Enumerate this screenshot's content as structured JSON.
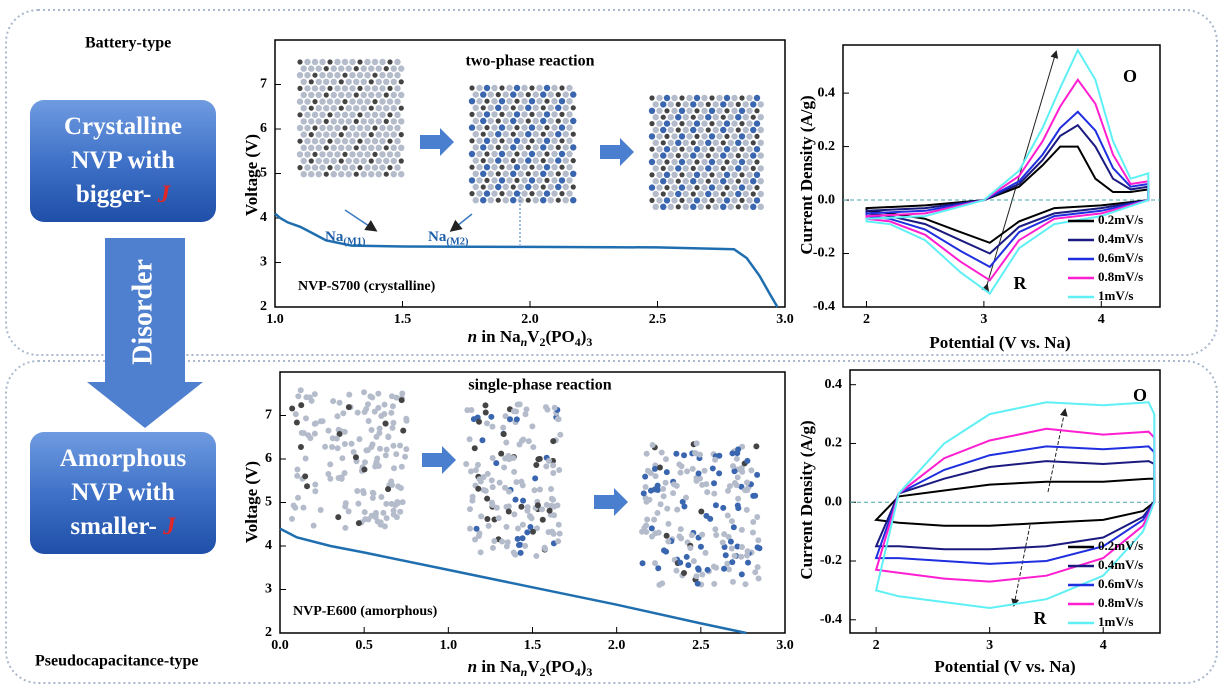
{
  "battery_label": "Battery-type",
  "pseudo_label": "Pseudocapacitance-type",
  "arrow_label": "Disorder",
  "boxes": [
    [
      [
        {
          "text": "Crystalline"
        }
      ],
      [
        {
          "text": "NVP with"
        }
      ],
      [
        {
          "text": "bigger- "
        },
        {
          "text": "J",
          "italic": true,
          "color": "#e02828"
        }
      ]
    ],
    [
      [
        {
          "text": "Amorphous"
        }
      ],
      [
        {
          "text": "NVP with"
        }
      ],
      [
        {
          "text": "smaller- "
        },
        {
          "text": "J",
          "italic": true,
          "color": "#e02828"
        }
      ]
    ]
  ],
  "chart_data": [
    {
      "type": "line",
      "annotations": [
        "two-phase reaction",
        "NVP-S700 (crystalline)"
      ],
      "site_labels": [
        [
          {
            "text": "Na"
          },
          {
            "text": "(M1)",
            "sub": true
          }
        ],
        [
          {
            "text": "Na"
          },
          {
            "text": "(M2)",
            "sub": true
          }
        ]
      ],
      "ylabel": "Voltage (V)",
      "xlabel": [
        {
          "text": "n",
          "italic": true
        },
        {
          "text": " in Na"
        },
        {
          "text": "n",
          "italic": true,
          "sub": true
        },
        {
          "text": "V"
        },
        {
          "text": "2",
          "sub": true
        },
        {
          "text": "(PO"
        },
        {
          "text": "4",
          "sub": true
        },
        {
          "text": ")"
        },
        {
          "text": "3",
          "sub": true
        }
      ],
      "x": [
        1.0,
        1.02,
        1.05,
        1.1,
        1.15,
        1.2,
        1.3,
        1.5,
        2.0,
        2.5,
        2.8,
        2.85,
        2.9,
        2.94,
        2.97
      ],
      "values": [
        4.1,
        4.0,
        3.9,
        3.8,
        3.65,
        3.5,
        3.38,
        3.36,
        3.35,
        3.34,
        3.3,
        3.1,
        2.7,
        2.3,
        2.0
      ],
      "color": "#1f6fb0",
      "xlim": [
        1.0,
        3.0
      ],
      "ylim": [
        2,
        8
      ],
      "xticks": [
        {
          "value": 1,
          "label": "1.0"
        },
        1.5,
        {
          "value": 2,
          "label": "2.0"
        },
        2.5,
        {
          "value": 3,
          "label": "3.0"
        }
      ],
      "yticks": [
        2,
        3,
        4,
        5,
        6,
        7
      ]
    },
    {
      "type": "line",
      "annotations": [
        "O",
        "R"
      ],
      "ylabel": "Current Density (A/g)",
      "xlabel": "Potential (V vs. Na)",
      "legend": "lower right",
      "x": [
        2.0,
        2.5,
        3.0,
        3.3,
        3.5,
        3.65,
        3.8,
        3.95,
        4.1,
        4.25,
        4.4,
        4.4,
        4.0,
        3.6,
        3.3,
        3.05,
        2.8,
        2.5,
        2.2,
        2.0
      ],
      "series": [
        {
          "name": "0.2mV/s",
          "color": "#000000",
          "values": [
            -0.03,
            -0.02,
            0.0,
            0.05,
            0.13,
            0.2,
            0.2,
            0.08,
            0.03,
            0.03,
            0.04,
            0.0,
            -0.02,
            -0.03,
            -0.08,
            -0.16,
            -0.12,
            -0.07,
            -0.05,
            -0.04
          ]
        },
        {
          "name": "0.4mV/s",
          "color": "#1a1a80",
          "values": [
            -0.04,
            -0.03,
            0.0,
            0.06,
            0.15,
            0.24,
            0.28,
            0.2,
            0.08,
            0.04,
            0.05,
            0.0,
            -0.03,
            -0.05,
            -0.1,
            -0.2,
            -0.15,
            -0.09,
            -0.06,
            -0.05
          ]
        },
        {
          "name": "0.6mV/s",
          "color": "#1f2fe0",
          "values": [
            -0.05,
            -0.04,
            0.0,
            0.07,
            0.17,
            0.27,
            0.33,
            0.26,
            0.12,
            0.05,
            0.06,
            0.0,
            -0.04,
            -0.06,
            -0.12,
            -0.25,
            -0.19,
            -0.11,
            -0.07,
            -0.06
          ]
        },
        {
          "name": "0.8mV/s",
          "color": "#ff1ed0",
          "values": [
            -0.06,
            -0.05,
            0.0,
            0.09,
            0.22,
            0.35,
            0.45,
            0.36,
            0.17,
            0.06,
            0.07,
            0.0,
            -0.05,
            -0.07,
            -0.15,
            -0.3,
            -0.23,
            -0.13,
            -0.08,
            -0.07
          ]
        },
        {
          "name": "1mV/s",
          "color": "#5ff0f5",
          "values": [
            -0.07,
            -0.06,
            0.0,
            0.11,
            0.27,
            0.42,
            0.56,
            0.45,
            0.22,
            0.08,
            0.1,
            0.0,
            -0.06,
            -0.09,
            -0.18,
            -0.35,
            -0.27,
            -0.15,
            -0.09,
            -0.08
          ]
        }
      ],
      "xlim": [
        1.8,
        4.5
      ],
      "ylim": [
        -0.4,
        0.58
      ],
      "xticks": [
        2,
        3,
        4
      ],
      "yticks": [
        -0.4,
        -0.2,
        {
          "value": 0,
          "label": "0.0"
        },
        0.2,
        0.4
      ]
    },
    {
      "type": "line",
      "annotations": [
        "single-phase reaction",
        "NVP-E600 (amorphous)"
      ],
      "ylabel": "Voltage (V)",
      "xlabel": [
        {
          "text": "n",
          "italic": true
        },
        {
          "text": " in Na"
        },
        {
          "text": "n",
          "italic": true,
          "sub": true
        },
        {
          "text": "V"
        },
        {
          "text": "2",
          "sub": true
        },
        {
          "text": "(PO"
        },
        {
          "text": "4",
          "sub": true
        },
        {
          "text": ")"
        },
        {
          "text": "3",
          "sub": true
        }
      ],
      "x": [
        0.0,
        0.1,
        0.3,
        0.5,
        1.0,
        1.5,
        2.0,
        2.5,
        2.77
      ],
      "values": [
        4.4,
        4.2,
        4.0,
        3.85,
        3.45,
        3.05,
        2.65,
        2.22,
        2.0
      ],
      "color": "#1f6fb0",
      "xlim": [
        0,
        3.0
      ],
      "ylim": [
        2,
        8
      ],
      "xticks": [
        {
          "value": 0,
          "label": "0.0"
        },
        0.5,
        {
          "value": 1,
          "label": "1.0"
        },
        1.5,
        {
          "value": 2,
          "label": "2.0"
        },
        2.5,
        {
          "value": 3,
          "label": "3.0"
        }
      ],
      "yticks": [
        2,
        3,
        4,
        5,
        6,
        7
      ]
    },
    {
      "type": "line",
      "annotations": [
        "O",
        "R"
      ],
      "ylabel": "Current Density (A/g)",
      "xlabel": "Potential (V vs. Na)",
      "legend": "lower right",
      "x": [
        2.0,
        2.2,
        2.6,
        3.0,
        3.5,
        4.0,
        4.4,
        4.45,
        4.45,
        4.35,
        4.0,
        3.5,
        3.0,
        2.6,
        2.2,
        2.0
      ],
      "series": [
        {
          "name": "0.2mV/s",
          "color": "#000000",
          "values": [
            -0.06,
            0.02,
            0.04,
            0.06,
            0.07,
            0.07,
            0.08,
            0.08,
            0.0,
            -0.03,
            -0.06,
            -0.07,
            -0.08,
            -0.08,
            -0.07,
            -0.06
          ]
        },
        {
          "name": "0.4mV/s",
          "color": "#1a1a80",
          "values": [
            -0.15,
            0.03,
            0.08,
            0.12,
            0.14,
            0.13,
            0.14,
            0.13,
            0.0,
            -0.05,
            -0.12,
            -0.15,
            -0.16,
            -0.16,
            -0.15,
            -0.15
          ]
        },
        {
          "name": "0.6mV/s",
          "color": "#1f2fe0",
          "values": [
            -0.19,
            0.03,
            0.11,
            0.16,
            0.19,
            0.18,
            0.19,
            0.17,
            0.0,
            -0.06,
            -0.15,
            -0.2,
            -0.21,
            -0.2,
            -0.19,
            -0.19
          ]
        },
        {
          "name": "0.8mV/s",
          "color": "#ff1ed0",
          "values": [
            -0.23,
            0.03,
            0.15,
            0.21,
            0.25,
            0.23,
            0.24,
            0.22,
            0.0,
            -0.08,
            -0.19,
            -0.25,
            -0.27,
            -0.26,
            -0.24,
            -0.23
          ]
        },
        {
          "name": "1mV/s",
          "color": "#5ff0f5",
          "values": [
            -0.3,
            0.03,
            0.2,
            0.3,
            0.34,
            0.33,
            0.34,
            0.3,
            0.0,
            -0.1,
            -0.25,
            -0.33,
            -0.36,
            -0.34,
            -0.32,
            -0.3
          ]
        }
      ],
      "xlim": [
        1.77,
        4.5
      ],
      "ylim": [
        -0.445,
        0.45
      ],
      "xticks": [
        2,
        3,
        4
      ],
      "yticks": [
        -0.4,
        -0.2,
        {
          "value": 0,
          "label": "0.0"
        },
        0.2,
        0.4
      ]
    }
  ]
}
